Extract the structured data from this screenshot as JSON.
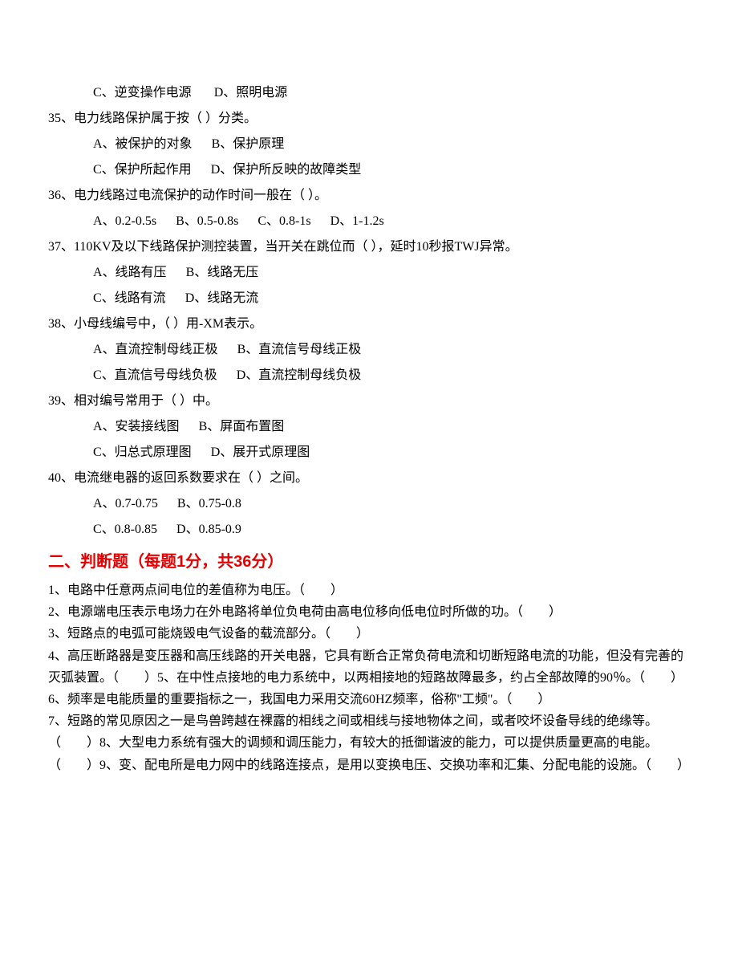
{
  "mc_continued_options": {
    "c": "C、逆变操作电源",
    "d": "D、照明电源"
  },
  "mc": [
    {
      "num": "35、",
      "stem": "电力线路保护属于按（ ）分类。",
      "rows": [
        [
          "A、被保护的对象",
          "B、保护原理"
        ],
        [
          "C、保护所起作用",
          "D、保护所反映的故障类型"
        ]
      ]
    },
    {
      "num": "36、",
      "stem": "电力线路过电流保护的动作时间一般在（ ）。",
      "rows": [
        [
          "A、0.2-0.5s",
          "B、0.5-0.8s",
          "C、0.8-1s",
          "D、1-1.2s"
        ]
      ]
    },
    {
      "num": "37、",
      "stem": "110KV及以下线路保护测控装置，当开关在跳位而（ ），延时10秒报TWJ异常。",
      "rows": [
        [
          "A、线路有压",
          "B、线路无压"
        ],
        [
          "C、线路有流",
          "D、线路无流"
        ]
      ]
    },
    {
      "num": "38、",
      "stem": "小母线编号中，（ ）用-XM表示。",
      "rows": [
        [
          "A、直流控制母线正极",
          "B、直流信号母线正极"
        ],
        [
          "C、直流信号母线负极",
          "D、直流控制母线负极"
        ]
      ]
    },
    {
      "num": "39、",
      "stem": "相对编号常用于（ ）中。",
      "rows": [
        [
          "A、安装接线图",
          "B、屏面布置图"
        ],
        [
          "C、归总式原理图",
          "D、展开式原理图"
        ]
      ]
    },
    {
      "num": "40、",
      "stem": "电流继电器的返回系数要求在（ ）之间。",
      "rows": [
        [
          "A、0.7-0.75",
          "B、0.75-0.8"
        ],
        [
          "C、0.8-0.85",
          "D、0.85-0.9"
        ]
      ]
    }
  ],
  "section2_header": "二、判断题（每题1分，共36分）",
  "tf": [
    "1、电路中任意两点间电位的差值称为电压。（　　）",
    "2、电源端电压表示电场力在外电路将单位负电荷由高电位移向低电位时所做的功。（　　）",
    "3、短路点的电弧可能烧毁电气设备的载流部分。（　　）",
    "4、高压断路器是变压器和高压线路的开关电器，它具有断合正常负荷电流和切断短路电流的功能，但没有完善的灭弧装置。（　　）5、在中性点接地的电力系统中，以两相接地的短路故障最多，约占全部故障的90％。（　　）",
    "6、频率是电能质量的重要指标之一，我国电力采用交流60HZ频率，俗称\"工频\"。（　　）",
    "7、短路的常见原因之一是鸟兽跨越在裸露的相线之间或相线与接地物体之间，或者咬坏设备导线的绝缘等。（　　）8、大型电力系统有强大的调频和调压能力，有较大的抵御谐波的能力，可以提供质量更高的电能。（　　）9、变、配电所是电力网中的线路连接点，是用以变换电压、交换功率和汇集、分配电能的设施。（　　）"
  ]
}
